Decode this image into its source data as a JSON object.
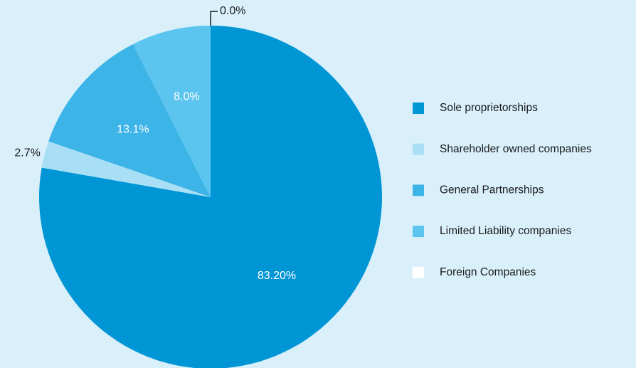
{
  "chart_data": {
    "type": "pie",
    "categories": [
      "Sole proprietorships",
      "Shareholder owned companies",
      "General Partnerships",
      "Limited Liability companies",
      "Foreign Companies"
    ],
    "values": [
      83.2,
      2.7,
      13.1,
      8.0,
      0.0
    ],
    "value_labels": [
      "83.20%",
      "2.7%",
      "13.1%",
      "8.0%",
      "0.0%"
    ],
    "colors": [
      "#0096d6",
      "#a8dff5",
      "#3cb4e7",
      "#5cc5ef",
      "#ffffff"
    ],
    "legend": "right"
  }
}
